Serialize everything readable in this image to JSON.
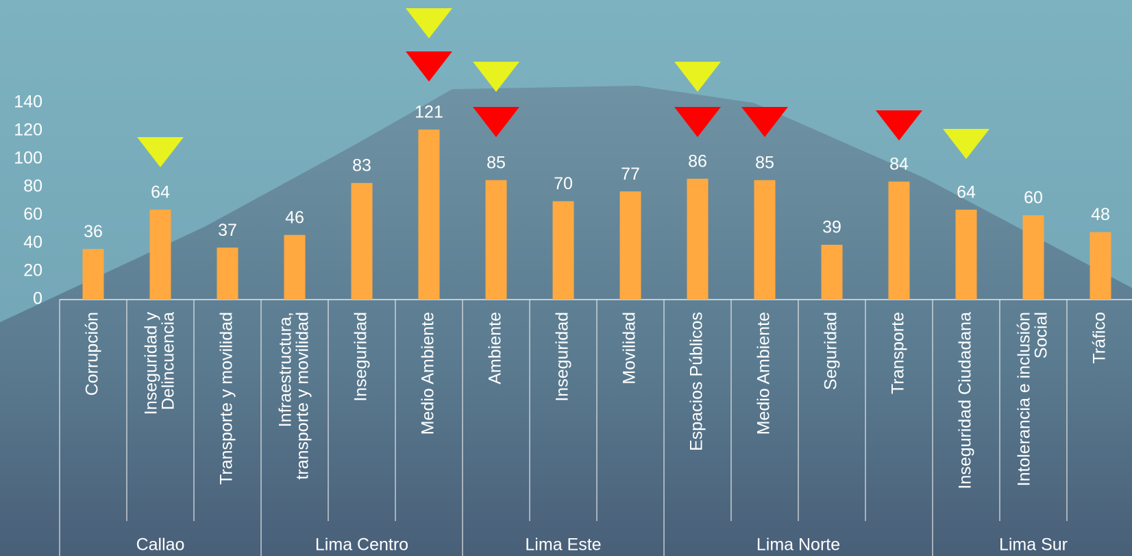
{
  "chart_data": {
    "type": "bar",
    "categories": [
      "Corrupción",
      "Inseguridad y\nDelincuencia",
      "Transporte y movilidad",
      "Infraestructura,\ntransporte y movilidad",
      "Inseguridad",
      "Medio Ambiente",
      "Ambiente",
      "Inseguridad",
      "Movilidad",
      "Espacios Públicos",
      "Medio Ambiente",
      "Seguridad",
      "Transporte",
      "Inseguridad Ciudadana",
      "Intolerancia e inclusión\nSocial",
      "Tráfico"
    ],
    "groups": [
      "Callao",
      "Callao",
      "Callao",
      "Lima Centro",
      "Lima Centro",
      "Lima Centro",
      "Lima Este",
      "Lima Este",
      "Lima Este",
      "Lima Norte",
      "Lima Norte",
      "Lima Norte",
      "Lima Norte",
      "Lima Sur",
      "Lima Sur",
      "Lima Sur"
    ],
    "values": [
      36,
      64,
      37,
      46,
      83,
      121,
      85,
      70,
      77,
      86,
      85,
      39,
      84,
      64,
      60,
      48
    ],
    "color": "#ffa940",
    "ylim": [
      0,
      140
    ],
    "yticks": [
      0,
      20,
      40,
      60,
      80,
      100,
      120,
      140
    ]
  }
}
